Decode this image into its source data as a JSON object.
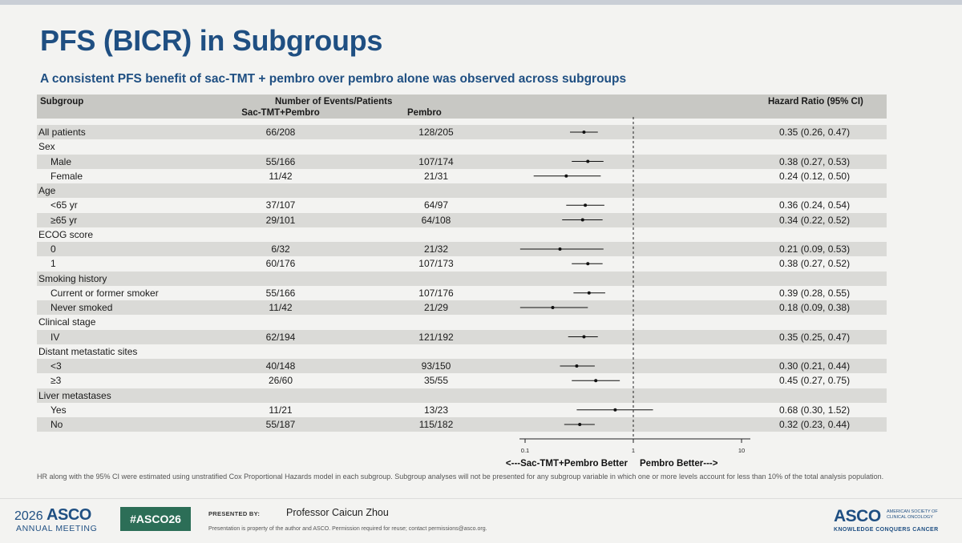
{
  "slide": {
    "title": "PFS (BICR) in Subgroups",
    "subtitle": "A consistent PFS benefit of sac-TMT + pembro over pembro alone was observed across subgroups"
  },
  "table": {
    "col_subgroup": "Subgroup",
    "col_events": "Number of Events/Patients",
    "col_arm1": "Sac-TMT+Pembro",
    "col_arm2": "Pembro",
    "col_hr": "Hazard Ratio (95% CI)"
  },
  "chart_data": {
    "type": "forest",
    "x_scale": "log",
    "xlim": [
      0.1,
      10
    ],
    "x_ticks": [
      "0.1",
      "1",
      "10"
    ],
    "reference_line": 1,
    "left_label": "<---Sac-TMT+Pembro Better",
    "right_label": "Pembro Better--->",
    "rows": [
      {
        "label": "All patients",
        "indent": false,
        "shaded": true,
        "arm1": "66/208",
        "arm2": "128/205",
        "hr": 0.35,
        "lo": 0.26,
        "hi": 0.47,
        "hr_text": "0.35 (0.26, 0.47)"
      },
      {
        "label": "Sex",
        "indent": false,
        "shaded": false,
        "header": true
      },
      {
        "label": "Male",
        "indent": true,
        "shaded": true,
        "arm1": "55/166",
        "arm2": "107/174",
        "hr": 0.38,
        "lo": 0.27,
        "hi": 0.53,
        "hr_text": "0.38 (0.27, 0.53)"
      },
      {
        "label": "Female",
        "indent": true,
        "shaded": false,
        "arm1": "11/42",
        "arm2": "21/31",
        "hr": 0.24,
        "lo": 0.12,
        "hi": 0.5,
        "hr_text": "0.24 (0.12, 0.50)"
      },
      {
        "label": "Age",
        "indent": false,
        "shaded": true,
        "header": true
      },
      {
        "label": "<65 yr",
        "indent": true,
        "shaded": false,
        "arm1": "37/107",
        "arm2": "64/97",
        "hr": 0.36,
        "lo": 0.24,
        "hi": 0.54,
        "hr_text": "0.36 (0.24, 0.54)"
      },
      {
        "label": "≥65 yr",
        "indent": true,
        "shaded": true,
        "arm1": "29/101",
        "arm2": "64/108",
        "hr": 0.34,
        "lo": 0.22,
        "hi": 0.52,
        "hr_text": "0.34 (0.22, 0.52)"
      },
      {
        "label": "ECOG score",
        "indent": false,
        "shaded": false,
        "header": true
      },
      {
        "label": "0",
        "indent": true,
        "shaded": true,
        "arm1": "6/32",
        "arm2": "21/32",
        "hr": 0.21,
        "lo": 0.09,
        "hi": 0.53,
        "hr_text": "0.21 (0.09, 0.53)"
      },
      {
        "label": "1",
        "indent": true,
        "shaded": false,
        "arm1": "60/176",
        "arm2": "107/173",
        "hr": 0.38,
        "lo": 0.27,
        "hi": 0.52,
        "hr_text": "0.38 (0.27, 0.52)"
      },
      {
        "label": "Smoking history",
        "indent": false,
        "shaded": true,
        "header": true
      },
      {
        "label": "Current or former smoker",
        "indent": true,
        "shaded": false,
        "arm1": "55/166",
        "arm2": "107/176",
        "hr": 0.39,
        "lo": 0.28,
        "hi": 0.55,
        "hr_text": "0.39 (0.28, 0.55)"
      },
      {
        "label": "Never smoked",
        "indent": true,
        "shaded": true,
        "arm1": "11/42",
        "arm2": "21/29",
        "hr": 0.18,
        "lo": 0.09,
        "hi": 0.38,
        "hr_text": "0.18 (0.09, 0.38)"
      },
      {
        "label": "Clinical stage",
        "indent": false,
        "shaded": false,
        "header": true
      },
      {
        "label": "IV",
        "indent": true,
        "shaded": true,
        "arm1": "62/194",
        "arm2": "121/192",
        "hr": 0.35,
        "lo": 0.25,
        "hi": 0.47,
        "hr_text": "0.35 (0.25, 0.47)"
      },
      {
        "label": "Distant metastatic sites",
        "indent": false,
        "shaded": false,
        "header": true
      },
      {
        "label": "<3",
        "indent": true,
        "shaded": true,
        "arm1": "40/148",
        "arm2": "93/150",
        "hr": 0.3,
        "lo": 0.21,
        "hi": 0.44,
        "hr_text": "0.30 (0.21, 0.44)"
      },
      {
        "label": "≥3",
        "indent": true,
        "shaded": false,
        "arm1": "26/60",
        "arm2": "35/55",
        "hr": 0.45,
        "lo": 0.27,
        "hi": 0.75,
        "hr_text": "0.45 (0.27, 0.75)"
      },
      {
        "label": "Liver metastases",
        "indent": false,
        "shaded": true,
        "header": true
      },
      {
        "label": "Yes",
        "indent": true,
        "shaded": false,
        "arm1": "11/21",
        "arm2": "13/23",
        "hr": 0.68,
        "lo": 0.3,
        "hi": 1.52,
        "hr_text": "0.68 (0.30, 1.52)"
      },
      {
        "label": "No",
        "indent": true,
        "shaded": true,
        "arm1": "55/187",
        "arm2": "115/182",
        "hr": 0.32,
        "lo": 0.23,
        "hi": 0.44,
        "hr_text": "0.32 (0.23, 0.44)"
      }
    ]
  },
  "footnote": "HR along with the 95% CI were estimated using unstratified Cox Proportional Hazards model in each subgroup. Subgroup analyses will not be presented for any subgroup variable in which one or more levels account for less than 10% of the total analysis population.",
  "footer": {
    "meeting_year": "2026",
    "meeting_org": "ASCO",
    "meeting_name": "ANNUAL MEETING",
    "hashtag": "#ASCO26",
    "presented_by_label": "PRESENTED BY:",
    "presenter": "Professor Caicun Zhou",
    "permission": "Presentation is property of the author and ASCO. Permission required for reuse; contact permissions@asco.org.",
    "org_logo": "ASCO",
    "org_full": "AMERICAN SOCIETY OF CLINICAL ONCOLOGY",
    "org_tagline": "KNOWLEDGE CONQUERS CANCER",
    "accent_color": "#1f4f82",
    "hashtag_color": "#2c6e57"
  }
}
